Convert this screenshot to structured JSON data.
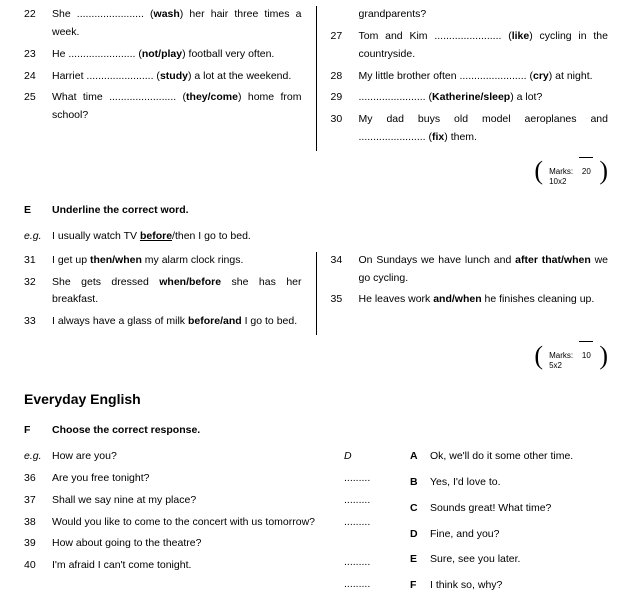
{
  "sectionD": {
    "left": [
      {
        "n": "22",
        "t": "She ....................... (wash) her hair three times a week."
      },
      {
        "n": "23",
        "t": "He ....................... (not/play) football very often."
      },
      {
        "n": "24",
        "t": "Harriet ....................... (study) a lot at the weekend."
      },
      {
        "n": "25",
        "t": "What   time   .......................   (they/come) home from school?"
      }
    ],
    "right": [
      {
        "n": "",
        "t": "grandparents?"
      },
      {
        "n": "27",
        "t": "Tom and Kim ....................... (like) cycling in the countryside."
      },
      {
        "n": "28",
        "t": "My little brother often ....................... (cry) at night."
      },
      {
        "n": "29",
        "t": "....................... (Katherine/sleep) a lot?"
      },
      {
        "n": "30",
        "t": "My dad buys old model aeroplanes and ....................... (fix) them."
      }
    ],
    "marks_label": "Marks:",
    "marks_denom": "10x2",
    "marks_total": "20"
  },
  "sectionE": {
    "letter": "E",
    "instruction": "Underline the correct word.",
    "eg_label": "e.g.",
    "eg_pre": "I usually watch TV ",
    "eg_u": "before",
    "eg_post": "/then I go to bed.",
    "left": [
      {
        "n": "31",
        "t": "I get up then/when my alarm clock rings."
      },
      {
        "n": "32",
        "t": "She gets dressed when/before she has her breakfast."
      },
      {
        "n": "33",
        "t": "I always have a glass of milk before/and I go to bed."
      }
    ],
    "right": [
      {
        "n": "34",
        "t": "On Sundays we have lunch and after that/when we go cycling."
      },
      {
        "n": "35",
        "t": "He leaves work and/when he finishes cleaning up."
      }
    ],
    "marks_label": "Marks:",
    "marks_denom": "5x2",
    "marks_total": "10"
  },
  "everyday_title": "Everyday English",
  "sectionF": {
    "letter": "F",
    "instruction": "Choose the correct response.",
    "eg_label": "e.g.",
    "eg_text": "How are you?",
    "eg_ans": "D",
    "left": [
      {
        "n": "36",
        "t": "Are you free tonight?"
      },
      {
        "n": "37",
        "t": "Shall we say nine at my place?"
      },
      {
        "n": "38",
        "t": "Would you like to come to the concert with us tomorrow?"
      },
      {
        "n": "39",
        "t": "How about going to the theatre?"
      },
      {
        "n": "40",
        "t": "I'm afraid I can't come tonight."
      }
    ],
    "dots": ".........",
    "right": [
      {
        "l": "A",
        "t": "Ok, we'll do it some other time."
      },
      {
        "l": "B",
        "t": "Yes, I'd love to."
      },
      {
        "l": "C",
        "t": "Sounds great! What time?"
      },
      {
        "l": "D",
        "t": "Fine, and you?"
      },
      {
        "l": "E",
        "t": "Sure, see you later."
      },
      {
        "l": "F",
        "t": "I think so, why?"
      }
    ]
  }
}
